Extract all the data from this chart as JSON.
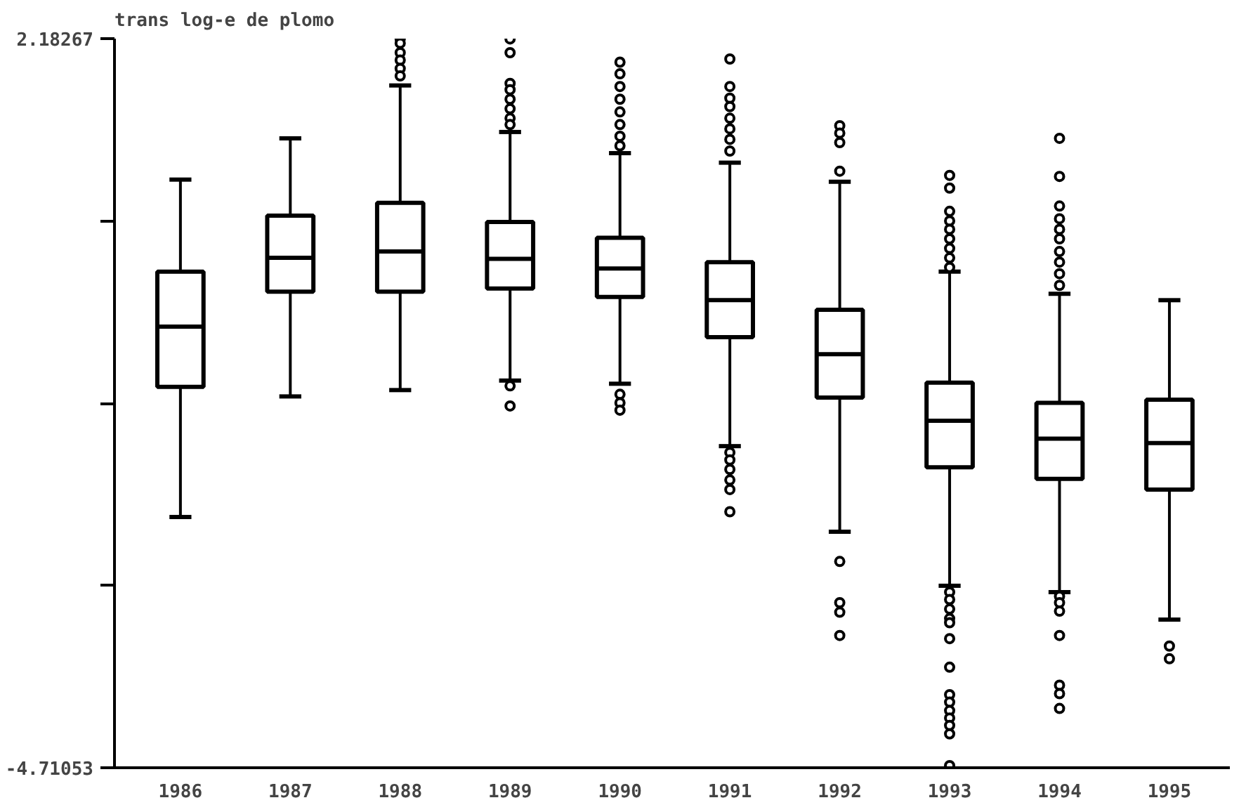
{
  "chart_data": {
    "type": "box",
    "ylabel": "trans log-e de plomo",
    "categories": [
      "1986",
      "1987",
      "1988",
      "1989",
      "1990",
      "1991",
      "1992",
      "1993",
      "1994",
      "1995"
    ],
    "ylim": [
      -4.71053,
      2.18267
    ],
    "yticks": [
      2.18267,
      {
        "value": 0.45937,
        "label": null
      },
      {
        "value": -1.26393,
        "label": null
      },
      {
        "value": -2.98723,
        "label": null
      },
      -4.71053
    ],
    "grid": false,
    "boxes": [
      {
        "low": -2.34,
        "q1": -1.11,
        "median": -0.54,
        "q3": -0.02,
        "high": 0.85
      },
      {
        "low": -1.2,
        "q1": -0.21,
        "median": 0.11,
        "q3": 0.51,
        "high": 1.24
      },
      {
        "low": -1.14,
        "q1": -0.21,
        "median": 0.17,
        "q3": 0.63,
        "high": 1.74,
        "outliers": [
          2.18,
          2.14,
          2.05,
          1.98,
          1.9,
          1.83
        ]
      },
      {
        "low": -1.05,
        "q1": -0.18,
        "median": 0.1,
        "q3": 0.45,
        "high": 1.3,
        "outliers": [
          2.18,
          2.05,
          1.76,
          1.7,
          1.61,
          1.52,
          1.43,
          1.37,
          -1.1,
          -1.29
        ]
      },
      {
        "low": -1.08,
        "q1": -0.26,
        "median": 0.01,
        "q3": 0.3,
        "high": 1.1,
        "outliers": [
          1.96,
          1.85,
          1.73,
          1.61,
          1.49,
          1.37,
          1.26,
          1.17,
          -1.18,
          -1.26,
          -1.33
        ]
      },
      {
        "low": -1.67,
        "q1": -0.64,
        "median": -0.29,
        "q3": 0.07,
        "high": 1.01,
        "outliers": [
          1.99,
          1.73,
          1.62,
          1.54,
          1.43,
          1.33,
          1.23,
          1.12,
          -1.73,
          -1.8,
          -1.89,
          -1.99,
          -2.08,
          -2.29
        ]
      },
      {
        "low": -2.48,
        "q1": -1.21,
        "median": -0.8,
        "q3": -0.38,
        "high": 0.83,
        "outliers": [
          1.36,
          1.29,
          1.2,
          0.93,
          -2.76,
          -3.15,
          -3.24,
          -3.46
        ]
      },
      {
        "low": -2.99,
        "q1": -1.87,
        "median": -1.43,
        "q3": -1.07,
        "high": -0.02,
        "outliers": [
          0.89,
          0.77,
          0.55,
          0.46,
          0.38,
          0.29,
          0.2,
          0.11,
          0.02,
          -3.05,
          -3.12,
          -3.21,
          -3.3,
          -3.34,
          -3.49,
          -3.76,
          -4.02,
          -4.09,
          -4.17,
          -4.24,
          -4.31,
          -4.39,
          -4.69
        ]
      },
      {
        "low": -3.05,
        "q1": -1.98,
        "median": -1.6,
        "q3": -1.26,
        "high": -0.23,
        "outliers": [
          1.24,
          0.88,
          0.6,
          0.48,
          0.38,
          0.29,
          0.17,
          0.07,
          -0.04,
          -0.15,
          -3.09,
          -3.15,
          -3.23,
          -3.46,
          -3.93,
          -4.01,
          -4.15
        ]
      },
      {
        "low": -3.31,
        "q1": -2.08,
        "median": -1.64,
        "q3": -1.23,
        "high": -0.29,
        "outliers": [
          -3.56,
          -3.68
        ]
      }
    ]
  }
}
